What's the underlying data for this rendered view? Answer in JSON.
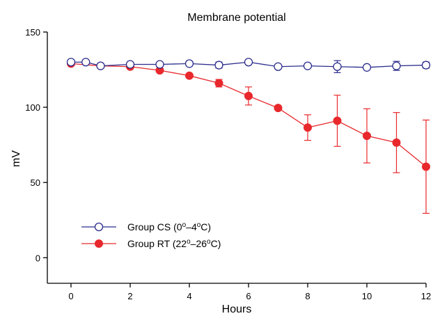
{
  "chart_data": {
    "type": "line",
    "title": "Membrane potential",
    "xlabel": "Hours",
    "ylabel": "mV",
    "xlim": [
      -0.8,
      12
    ],
    "ylim": [
      -17,
      150
    ],
    "xticks": [
      0,
      2,
      4,
      6,
      8,
      10,
      12
    ],
    "yticks": [
      0,
      50,
      100,
      150
    ],
    "grid": false,
    "legend_position": "bottom-left",
    "series": [
      {
        "name": "Group CS (0°–4°C)",
        "legend_parts": [
          "Group CS (0",
          "o",
          "–4",
          "o",
          "C)"
        ],
        "color": "#2b2c8c",
        "marker": "open-circle",
        "x": [
          0,
          0.5,
          1,
          2,
          3,
          4,
          5,
          6,
          7,
          8,
          9,
          10,
          11,
          12
        ],
        "y": [
          130,
          130,
          127.5,
          128.5,
          128.5,
          129,
          128,
          130,
          127,
          127.5,
          127,
          126.5,
          127.5,
          128
        ],
        "err": [
          1,
          1,
          1,
          1,
          0.5,
          0.5,
          2,
          0.5,
          1,
          1,
          4,
          1,
          3,
          2
        ]
      },
      {
        "name": "Group RT (22°–26°C)",
        "legend_parts": [
          "Group RT (22",
          "o",
          "–26",
          "o",
          "C)"
        ],
        "color": "#e8282c",
        "marker": "filled-circle",
        "x": [
          0,
          1,
          2,
          3,
          4,
          5,
          6,
          7,
          8,
          9,
          10,
          11,
          12
        ],
        "y": [
          129,
          127.5,
          127,
          124.5,
          121,
          116,
          107.5,
          99.5,
          86.5,
          91,
          81,
          76.5,
          60.5
        ],
        "err": [
          1,
          1,
          1,
          1,
          1,
          2.5,
          6,
          1,
          8.5,
          17,
          18,
          20,
          31
        ]
      }
    ]
  }
}
